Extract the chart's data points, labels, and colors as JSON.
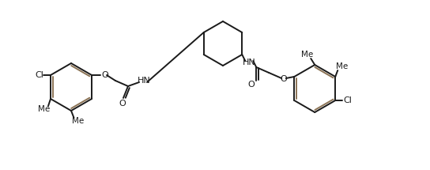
{
  "bg_color": "#ffffff",
  "line_color": "#1a1a1a",
  "double_bond_color": "#8B7355",
  "lw": 1.4,
  "fig_width": 5.44,
  "fig_height": 2.15,
  "dpi": 100,
  "xlim": [
    0,
    5.44
  ],
  "ylim": [
    0,
    2.15
  ]
}
